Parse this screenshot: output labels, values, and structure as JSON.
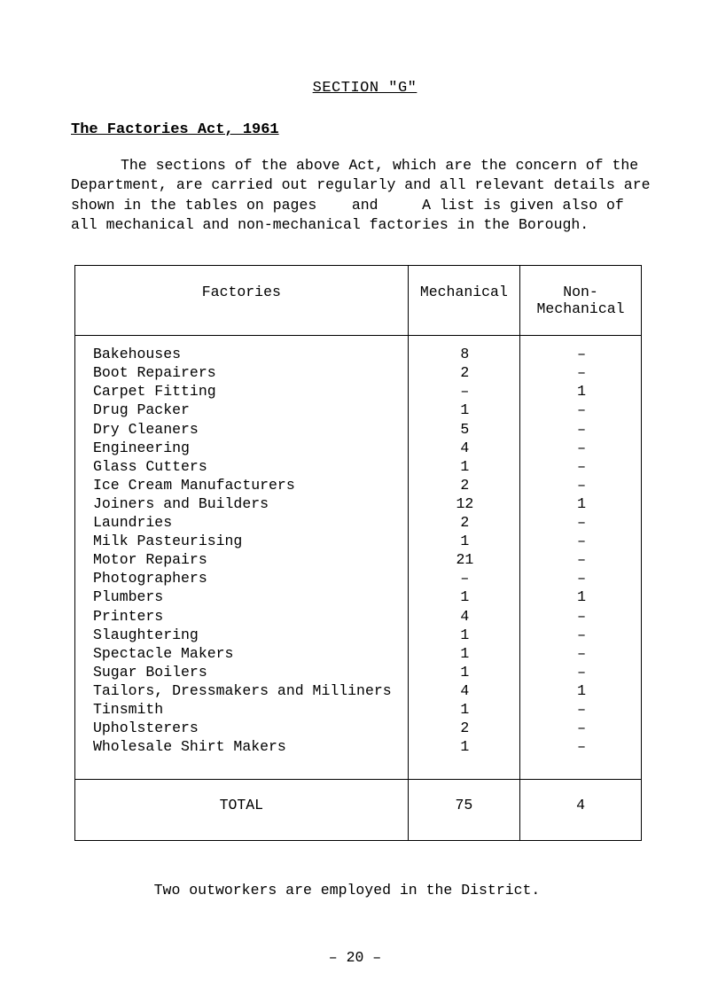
{
  "section_title": "SECTION \"G\"",
  "subheading": "The Factories Act, 1961",
  "paragraph_html": "<span class=\"indent\"></span>The sections of the above Act, which are the concern of the Department, are carried out regularly and all relevant details are shown in the tables on pages&nbsp;&nbsp;&nbsp;&nbsp;and&nbsp;&nbsp;&nbsp;&nbsp;&nbsp;A list is given also of all mechanical and non-mechanical factories in the Borough.",
  "table": {
    "headers": {
      "factories": "Factories",
      "mechanical": "Mechanical",
      "non_mechanical": "Non-Mechanical"
    },
    "rows": [
      {
        "factory": "Bakehouses",
        "mech": "8",
        "non": "–"
      },
      {
        "factory": "Boot Repairers",
        "mech": "2",
        "non": "–"
      },
      {
        "factory": "Carpet Fitting",
        "mech": "–",
        "non": "1"
      },
      {
        "factory": "Drug Packer",
        "mech": "1",
        "non": "–"
      },
      {
        "factory": "Dry Cleaners",
        "mech": "5",
        "non": "–"
      },
      {
        "factory": "Engineering",
        "mech": "4",
        "non": "–"
      },
      {
        "factory": "Glass Cutters",
        "mech": "1",
        "non": "–"
      },
      {
        "factory": "Ice Cream Manufacturers",
        "mech": "2",
        "non": "–"
      },
      {
        "factory": "Joiners and Builders",
        "mech": "12",
        "non": "1"
      },
      {
        "factory": "Laundries",
        "mech": "2",
        "non": "–"
      },
      {
        "factory": "Milk Pasteurising",
        "mech": "1",
        "non": "–"
      },
      {
        "factory": "Motor Repairs",
        "mech": "21",
        "non": "–"
      },
      {
        "factory": "Photographers",
        "mech": "–",
        "non": "–"
      },
      {
        "factory": "Plumbers",
        "mech": "1",
        "non": "1"
      },
      {
        "factory": "Printers",
        "mech": "4",
        "non": "–"
      },
      {
        "factory": "Slaughtering",
        "mech": "1",
        "non": "–"
      },
      {
        "factory": "Spectacle Makers",
        "mech": "1",
        "non": "–"
      },
      {
        "factory": "Sugar Boilers",
        "mech": "1",
        "non": "–"
      },
      {
        "factory": "Tailors, Dressmakers and Milliners",
        "mech": "4",
        "non": "1"
      },
      {
        "factory": "Tinsmith",
        "mech": "1",
        "non": "–"
      },
      {
        "factory": "Upholsterers",
        "mech": "2",
        "non": "–"
      },
      {
        "factory": "Wholesale Shirt Makers",
        "mech": "1",
        "non": "–"
      }
    ],
    "footer": {
      "label": "TOTAL",
      "mech": "75",
      "non": "4"
    }
  },
  "footnote": "Two outworkers are employed in the District.",
  "page_number": "– 20 –"
}
